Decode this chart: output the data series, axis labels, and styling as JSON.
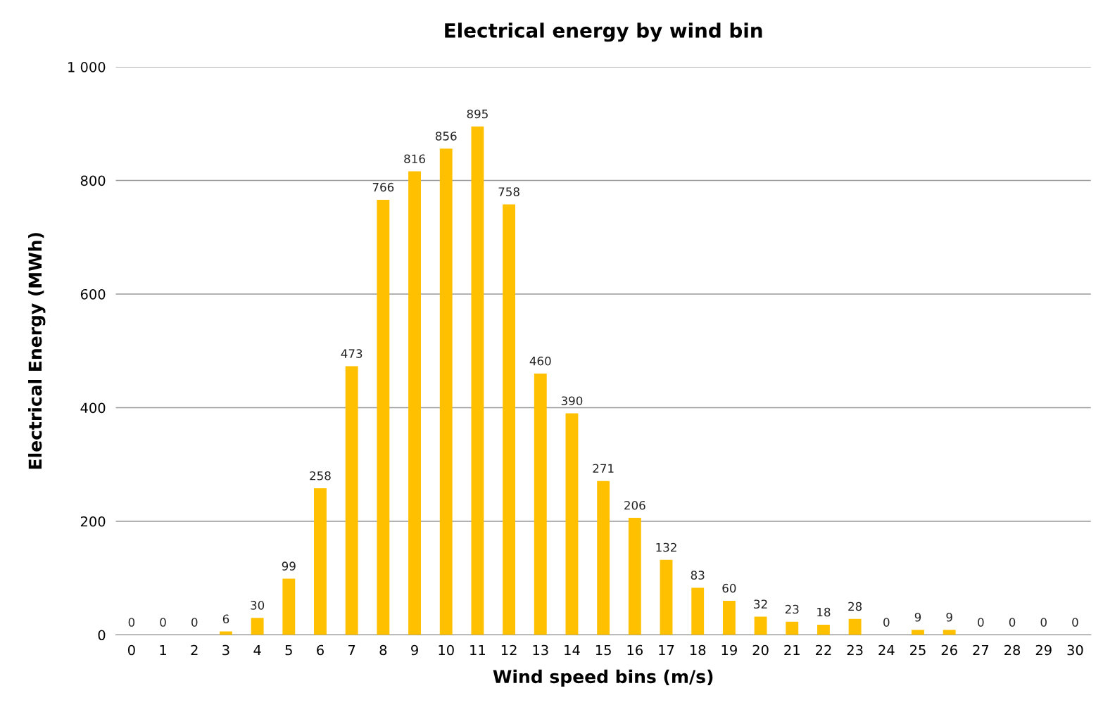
{
  "chart_data": {
    "type": "bar",
    "title": "Electrical energy by wind bin",
    "xlabel": "Wind speed bins (m/s)",
    "ylabel": "Electrical Energy (MWh)",
    "categories": [
      "0",
      "1",
      "2",
      "3",
      "4",
      "5",
      "6",
      "7",
      "8",
      "9",
      "10",
      "11",
      "12",
      "13",
      "14",
      "15",
      "16",
      "17",
      "18",
      "19",
      "20",
      "21",
      "22",
      "23",
      "24",
      "25",
      "26",
      "27",
      "28",
      "29",
      "30"
    ],
    "values": [
      0,
      0,
      0,
      6,
      30,
      99,
      258,
      473,
      766,
      816,
      856,
      895,
      758,
      460,
      390,
      271,
      206,
      132,
      83,
      60,
      32,
      23,
      18,
      28,
      0,
      9,
      9,
      0,
      0,
      0,
      0
    ],
    "color": "#ffc000",
    "ylim": [
      0,
      1000
    ],
    "yticks": [
      0,
      200,
      400,
      600,
      800,
      {
        "value": 1000,
        "label": "1 000"
      }
    ],
    "grid": "y",
    "data_labels": true,
    "legend": false
  }
}
